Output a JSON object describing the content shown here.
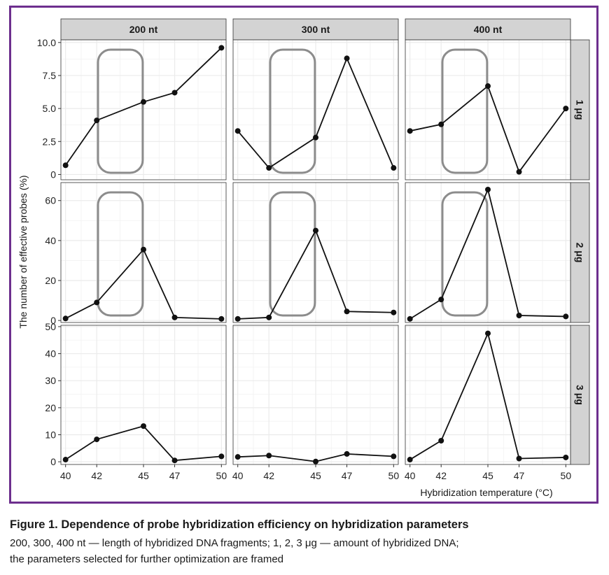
{
  "figure": {
    "caption_title": "Figure 1. Dependence of probe hybridization efficiency on hybridization parameters",
    "caption_line1": "200, 300, 400 nt — length of hybridized DNA fragments; 1, 2, 3 μg — amount of hybridized DNA;",
    "caption_line2": "the parameters selected for further optimization are framed",
    "border_color": "#6d2f8e"
  },
  "chart_data": {
    "type": "line",
    "xlabel": "Hybridization temperature (°C)",
    "ylabel": "The number of effective probes (%)",
    "x_ticks": [
      40,
      42,
      45,
      47,
      50
    ],
    "x_tick_labels": [
      "40",
      "42",
      "45",
      "47",
      "50"
    ],
    "xlim": [
      39.7,
      50.3
    ],
    "columns": [
      "200 nt",
      "300 nt",
      "400 nt"
    ],
    "rows": [
      {
        "label": "1 μg",
        "ylim": [
          -0.4,
          10.2
        ],
        "y_ticks": [
          0,
          2.5,
          5,
          7.5,
          10
        ],
        "y_tick_labels": [
          "0",
          "2.5",
          "5.0",
          "7.5",
          "10.0"
        ]
      },
      {
        "label": "2 μg",
        "ylim": [
          -1,
          69
        ],
        "y_ticks": [
          0,
          20,
          40,
          60
        ],
        "y_tick_labels": [
          "0",
          "20",
          "40",
          "60"
        ]
      },
      {
        "label": "3 μg",
        "ylim": [
          -1,
          50.5
        ],
        "y_ticks": [
          0,
          10,
          20,
          30,
          40,
          50
        ],
        "y_tick_labels": [
          "0",
          "10",
          "20",
          "30",
          "40",
          "50"
        ]
      }
    ],
    "panels": [
      {
        "row": 0,
        "col": 0,
        "y": [
          0.7,
          4.1,
          5.5,
          6.2,
          9.6
        ],
        "framed": true
      },
      {
        "row": 0,
        "col": 1,
        "y": [
          3.3,
          0.5,
          2.8,
          8.8,
          0.5
        ],
        "framed": true
      },
      {
        "row": 0,
        "col": 2,
        "y": [
          3.3,
          3.8,
          6.7,
          0.2,
          5.0
        ],
        "framed": true
      },
      {
        "row": 1,
        "col": 0,
        "y": [
          1.0,
          9.0,
          35.5,
          1.5,
          0.8
        ],
        "framed": true
      },
      {
        "row": 1,
        "col": 1,
        "y": [
          0.8,
          1.5,
          45.0,
          4.5,
          4.0
        ],
        "framed": true
      },
      {
        "row": 1,
        "col": 2,
        "y": [
          0.8,
          10.5,
          65.5,
          2.5,
          2.0
        ],
        "framed": true
      },
      {
        "row": 2,
        "col": 0,
        "y": [
          0.8,
          8.3,
          13.2,
          0.5,
          2.0
        ],
        "framed": false
      },
      {
        "row": 2,
        "col": 1,
        "y": [
          1.8,
          2.3,
          0.1,
          2.9,
          2.0
        ],
        "framed": false
      },
      {
        "row": 2,
        "col": 2,
        "y": [
          0.8,
          7.8,
          47.5,
          1.2,
          1.6
        ],
        "framed": false
      }
    ],
    "grid": true,
    "colors": {
      "line": "#111111",
      "point": "#111111",
      "frame": "#8c8c8c",
      "strip": "#d3d3d3",
      "grid": "#ebebeb"
    }
  }
}
